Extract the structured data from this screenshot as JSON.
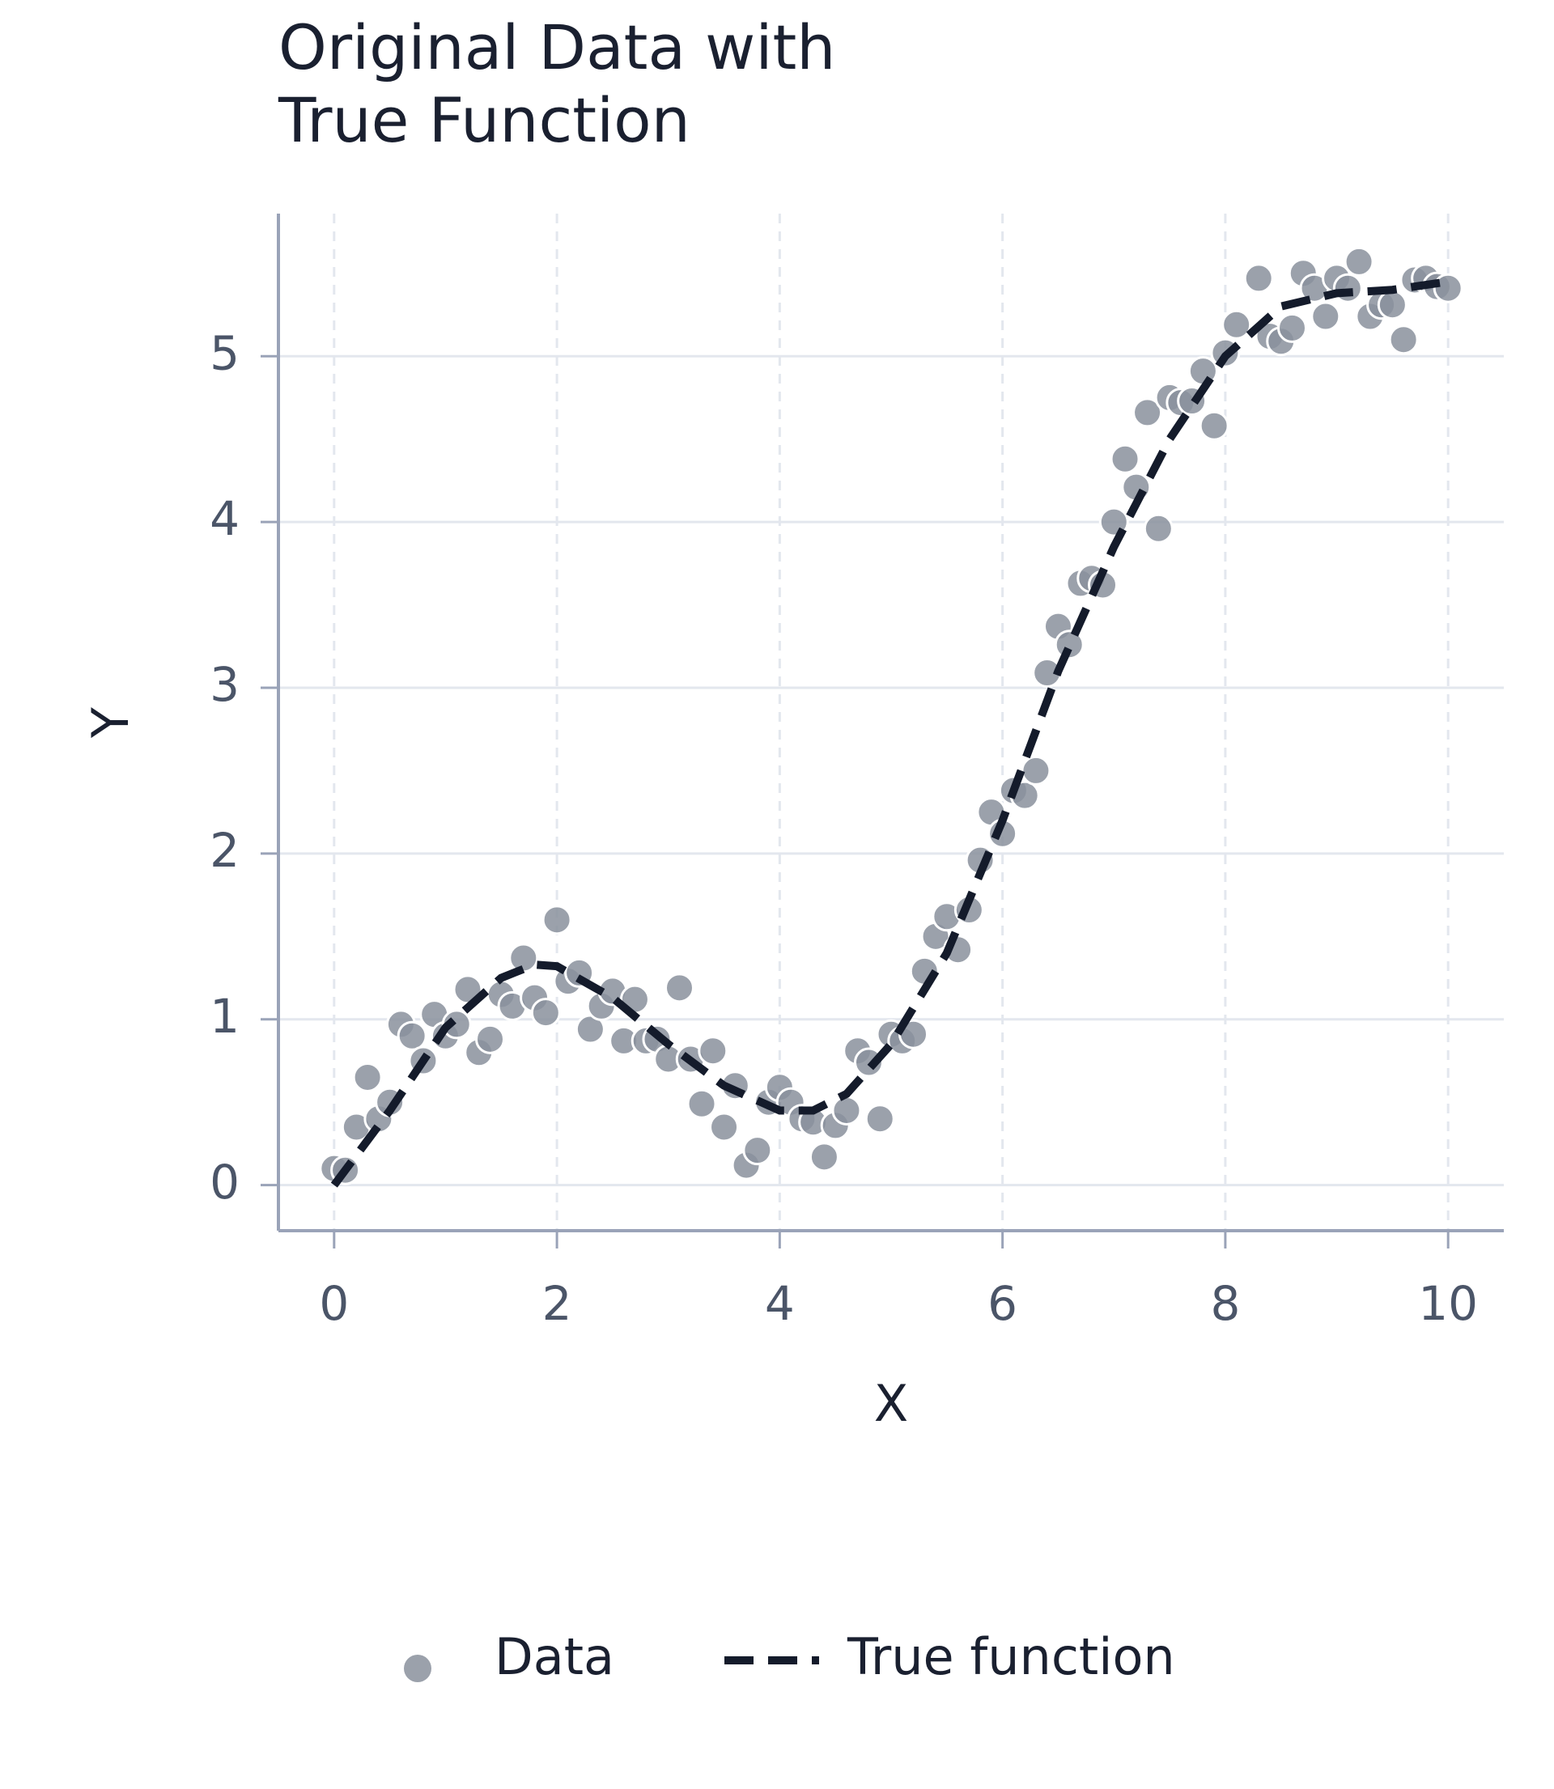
{
  "chart_data": {
    "type": "scatter",
    "title": "Original Data with True Function",
    "x_label": "X",
    "y_label": "Y",
    "xlim": [
      -0.5,
      10.5
    ],
    "ylim": [
      -0.275,
      5.86
    ],
    "xticks": [
      0,
      2,
      4,
      6,
      8,
      10
    ],
    "yticks": [
      0,
      1,
      2,
      3,
      4,
      5
    ],
    "grid": true,
    "legend": "bottom",
    "series": [
      {
        "name": "Data",
        "type": "scatter",
        "color": "#8a919c",
        "x": [
          0.0,
          0.1,
          0.2,
          0.3,
          0.4,
          0.5,
          0.6,
          0.7,
          0.8,
          0.9,
          1.0,
          1.1,
          1.2,
          1.3,
          1.4,
          1.5,
          1.6,
          1.7,
          1.8,
          1.9,
          2.0,
          2.1,
          2.2,
          2.3,
          2.4,
          2.5,
          2.6,
          2.7,
          2.8,
          2.9,
          3.0,
          3.1,
          3.2,
          3.3,
          3.4,
          3.5,
          3.6,
          3.7,
          3.8,
          3.9,
          4.0,
          4.1,
          4.2,
          4.3,
          4.4,
          4.5,
          4.6,
          4.7,
          4.8,
          4.9,
          5.0,
          5.1,
          5.2,
          5.3,
          5.4,
          5.5,
          5.6,
          5.7,
          5.8,
          5.9,
          6.0,
          6.1,
          6.2,
          6.3,
          6.4,
          6.5,
          6.6,
          6.7,
          6.8,
          6.9,
          7.0,
          7.1,
          7.2,
          7.3,
          7.4,
          7.5,
          7.6,
          7.7,
          7.8,
          7.9,
          8.0,
          8.1,
          8.3,
          8.4,
          8.5,
          8.6,
          8.7,
          8.8,
          8.9,
          9.0,
          9.1,
          9.2,
          9.3,
          9.4,
          9.5,
          9.6,
          9.7,
          9.8,
          9.9,
          10.0
        ],
        "values": [
          0.1,
          0.09,
          0.35,
          0.65,
          0.4,
          0.5,
          0.97,
          0.9,
          0.75,
          1.03,
          0.9,
          0.97,
          1.18,
          0.8,
          0.88,
          1.15,
          1.08,
          1.37,
          1.13,
          1.04,
          1.6,
          1.23,
          1.28,
          0.94,
          1.08,
          1.17,
          0.87,
          1.12,
          0.87,
          0.88,
          0.76,
          1.19,
          0.76,
          0.49,
          0.81,
          0.35,
          0.6,
          0.12,
          0.21,
          0.5,
          0.59,
          0.5,
          0.4,
          0.38,
          0.17,
          0.36,
          0.45,
          0.81,
          0.74,
          0.4,
          0.91,
          0.87,
          0.91,
          1.29,
          1.5,
          1.62,
          1.42,
          1.66,
          1.96,
          2.25,
          2.12,
          2.38,
          2.35,
          2.5,
          3.09,
          3.37,
          3.26,
          3.63,
          3.66,
          3.62,
          4.0,
          4.38,
          4.21,
          4.66,
          3.96,
          4.75,
          4.72,
          4.73,
          4.91,
          4.58,
          5.02,
          5.19,
          5.47,
          5.12,
          5.09,
          5.17,
          5.5,
          5.41,
          5.24,
          5.47,
          5.41,
          5.57,
          5.24,
          5.31,
          5.31,
          5.1,
          5.46,
          5.47,
          5.42,
          5.41
        ]
      },
      {
        "name": "True function",
        "type": "line",
        "color": "#141b2b",
        "x": [
          0,
          0.5,
          1,
          1.5,
          1.8,
          2,
          2.5,
          3,
          3.5,
          4,
          4.3,
          4.6,
          5,
          5.5,
          6,
          6.5,
          7,
          7.5,
          8,
          8.5,
          9,
          9.5,
          10
        ],
        "values": [
          0,
          0.45,
          0.95,
          1.25,
          1.33,
          1.32,
          1.13,
          0.85,
          0.6,
          0.45,
          0.45,
          0.55,
          0.85,
          1.4,
          2.2,
          3.1,
          3.85,
          4.5,
          5.0,
          5.3,
          5.38,
          5.4,
          5.45
        ]
      }
    ]
  }
}
